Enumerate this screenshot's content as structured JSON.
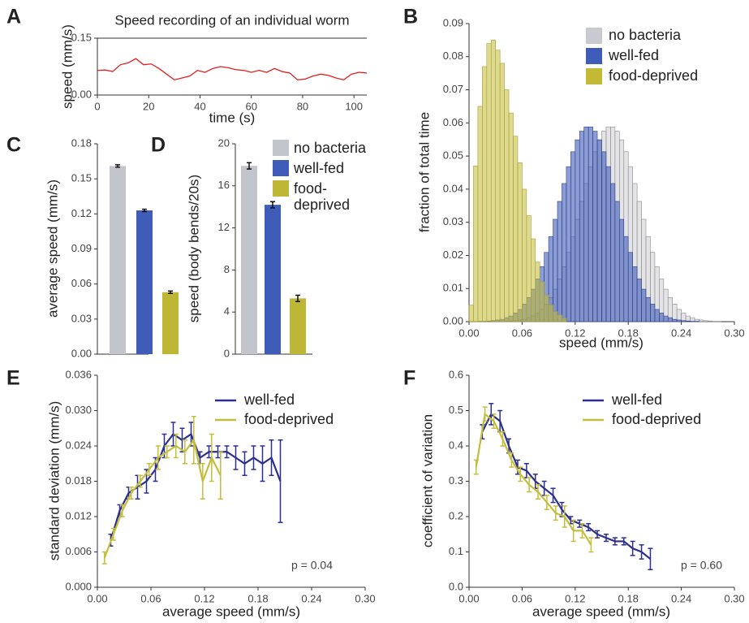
{
  "chart_data": [
    {
      "panel": "A",
      "type": "line",
      "title": "Speed recording of an individual worm",
      "xlabel": "time (s)",
      "ylabel": "speed (mm/s)",
      "color": "#e02020",
      "x": [
        0,
        3,
        6,
        9,
        12,
        15,
        18,
        21,
        24,
        27,
        30,
        33,
        36,
        39,
        42,
        45,
        48,
        51,
        54,
        57,
        60,
        63,
        66,
        69,
        72,
        75,
        78,
        81,
        84,
        87,
        90,
        93,
        96,
        99,
        102,
        105
      ],
      "values": [
        0.065,
        0.066,
        0.062,
        0.08,
        0.085,
        0.096,
        0.08,
        0.082,
        0.07,
        0.055,
        0.04,
        0.045,
        0.05,
        0.065,
        0.06,
        0.07,
        0.075,
        0.072,
        0.067,
        0.065,
        0.06,
        0.065,
        0.06,
        0.07,
        0.062,
        0.058,
        0.04,
        0.042,
        0.05,
        0.055,
        0.052,
        0.045,
        0.04,
        0.055,
        0.06,
        0.058
      ],
      "xlim": [
        0,
        105
      ],
      "xticks": [
        0,
        20,
        40,
        60,
        80,
        100
      ],
      "ylim": [
        0,
        0.15
      ],
      "yticks": [
        {
          "value": 0,
          "label": "0.00"
        },
        {
          "value": 0.15,
          "label": "0.15"
        }
      ]
    },
    {
      "panel": "B",
      "type": "histogram",
      "xlabel": "speed (mm/s)",
      "ylabel": "fraction of total time",
      "bins": [
        0,
        0.005,
        0.01,
        0.015,
        0.02,
        0.025,
        0.03,
        0.035,
        0.04,
        0.045,
        0.05,
        0.055,
        0.06,
        0.065,
        0.07,
        0.075,
        0.08,
        0.085,
        0.09,
        0.095,
        0.1,
        0.105,
        0.11,
        0.115,
        0.12,
        0.125,
        0.13,
        0.135,
        0.14,
        0.145,
        0.15,
        0.155,
        0.16,
        0.165,
        0.17,
        0.175,
        0.18,
        0.185,
        0.19,
        0.195,
        0.2,
        0.205,
        0.21,
        0.215,
        0.22,
        0.225,
        0.23,
        0.235,
        0.24,
        0.245,
        0.25,
        0.255,
        0.26,
        0.265,
        0.27,
        0.275,
        0.28,
        0.285,
        0.29,
        0.295,
        0.3
      ],
      "series": [
        {
          "name": "no bacteria",
          "color": "#c9cad0",
          "values": [
            0,
            0,
            0,
            0,
            0,
            0,
            0,
            0.0001,
            0.0001,
            0.0002,
            0.0003,
            0.0005,
            0.0007,
            0.0012,
            0.0017,
            0.0026,
            0.0037,
            0.0053,
            0.0073,
            0.0098,
            0.0129,
            0.0166,
            0.0209,
            0.0257,
            0.0309,
            0.0363,
            0.0417,
            0.0468,
            0.0513,
            0.0549,
            0.0575,
            0.0588,
            0.0588,
            0.0575,
            0.0549,
            0.0513,
            0.0468,
            0.0417,
            0.0363,
            0.0309,
            0.0257,
            0.0209,
            0.0166,
            0.0129,
            0.0098,
            0.0073,
            0.0053,
            0.0037,
            0.0026,
            0.0017,
            0.0012,
            0.0007,
            0.0005,
            0.0003,
            0.0002,
            0.0001,
            0.0001,
            0,
            0,
            0
          ]
        },
        {
          "name": "well-fed",
          "color": "#3f5cb8",
          "values": [
            0,
            0,
            0.0001,
            0.0001,
            0.0002,
            0.0003,
            0.0005,
            0.0007,
            0.0012,
            0.0017,
            0.0026,
            0.0037,
            0.0053,
            0.0073,
            0.0098,
            0.0129,
            0.0166,
            0.0209,
            0.0257,
            0.0309,
            0.0363,
            0.0417,
            0.0468,
            0.0513,
            0.0549,
            0.0575,
            0.0588,
            0.0588,
            0.0575,
            0.0549,
            0.0513,
            0.0468,
            0.0417,
            0.0363,
            0.0309,
            0.0257,
            0.0209,
            0.0166,
            0.0129,
            0.0098,
            0.0073,
            0.0053,
            0.0037,
            0.0026,
            0.0017,
            0.0012,
            0.0007,
            0.0005,
            0.0003,
            0.0002,
            0.0001,
            0.0001,
            0,
            0,
            0,
            0,
            0,
            0,
            0,
            0
          ]
        },
        {
          "name": "food-deprived",
          "color": "#c2ba35",
          "values": [
            0.005,
            0.047,
            0.065,
            0.077,
            0.084,
            0.085,
            0.082,
            0.078,
            0.07,
            0.063,
            0.056,
            0.048,
            0.04,
            0.032,
            0.025,
            0.018,
            0.012,
            0.008,
            0.005,
            0.003,
            0.002,
            0.001,
            0,
            0,
            0,
            0,
            0,
            0,
            0,
            0,
            0,
            0,
            0,
            0,
            0,
            0,
            0,
            0,
            0,
            0,
            0,
            0,
            0,
            0,
            0,
            0,
            0,
            0,
            0,
            0,
            0,
            0,
            0,
            0,
            0,
            0,
            0,
            0,
            0,
            0
          ]
        }
      ],
      "xlim": [
        0,
        0.3
      ],
      "xticks": [
        {
          "value": 0,
          "label": "0.00"
        },
        0.06,
        0.12,
        0.18,
        0.24,
        {
          "value": 0.3,
          "label": "0.30"
        }
      ],
      "ylim": [
        0,
        0.09
      ],
      "yticks": [
        {
          "value": 0,
          "label": "0.00"
        },
        0.01,
        0.02,
        0.03,
        0.04,
        0.05,
        0.06,
        0.07,
        0.08,
        0.09
      ]
    },
    {
      "panel": "C",
      "type": "bar",
      "ylabel": "average speed (mm/s)",
      "categories": [
        null,
        null,
        null
      ],
      "values": [
        0.161,
        0.123,
        0.053
      ],
      "errors": [
        0.001,
        0.001,
        0.001
      ],
      "colors": [
        "#c3c5cc",
        "#3f5cb8",
        "#bdb735"
      ],
      "ylim": [
        0,
        0.18
      ],
      "yticks": [
        {
          "value": 0,
          "label": "0.00"
        },
        0.03,
        0.06,
        0.09,
        0.12,
        0.15,
        0.18
      ]
    },
    {
      "panel": "D",
      "type": "bar",
      "ylabel": "speed (body bends/20s)",
      "categories": [
        null,
        null,
        null
      ],
      "values": [
        17.9,
        14.2,
        5.3
      ],
      "errors": [
        0.3,
        0.3,
        0.3
      ],
      "colors": [
        "#c3c5cc",
        "#3f5cb8",
        "#bdb735"
      ],
      "legend": [
        "no bacteria",
        "well-fed",
        "food-deprived"
      ],
      "ylim": [
        0,
        20
      ],
      "yticks": [
        0,
        4,
        8,
        12,
        16,
        20
      ]
    },
    {
      "panel": "E",
      "type": "line",
      "xlabel": "average speed (mm/s)",
      "ylabel": "standard deviation (mm/s)",
      "annotation": "p = 0.04",
      "series": [
        {
          "name": "well-fed",
          "color": "#2b2f8f",
          "x": [
            0.015,
            0.025,
            0.035,
            0.045,
            0.055,
            0.065,
            0.075,
            0.085,
            0.095,
            0.105,
            0.115,
            0.125,
            0.135,
            0.145,
            0.155,
            0.165,
            0.175,
            0.185,
            0.195,
            0.205
          ],
          "values": [
            0.008,
            0.013,
            0.016,
            0.017,
            0.018,
            0.02,
            0.024,
            0.026,
            0.025,
            0.026,
            0.022,
            0.023,
            0.023,
            0.023,
            0.022,
            0.021,
            0.022,
            0.021,
            0.022,
            0.018
          ],
          "errors": [
            0.001,
            0.001,
            0.001,
            0.002,
            0.002,
            0.002,
            0.002,
            0.002,
            0.002,
            0.002,
            0.001,
            0.001,
            0.001,
            0.001,
            0.002,
            0.002,
            0.002,
            0.003,
            0.003,
            0.007
          ]
        },
        {
          "name": "food-deprived",
          "color": "#c4be3c",
          "x": [
            0.008,
            0.018,
            0.028,
            0.038,
            0.048,
            0.058,
            0.068,
            0.078,
            0.088,
            0.098,
            0.108,
            0.118,
            0.128,
            0.138
          ],
          "values": [
            0.005,
            0.009,
            0.013,
            0.016,
            0.018,
            0.02,
            0.022,
            0.023,
            0.024,
            0.023,
            0.025,
            0.018,
            0.022,
            0.019
          ],
          "errors": [
            0.001,
            0.001,
            0.001,
            0.001,
            0.001,
            0.001,
            0.002,
            0.001,
            0.002,
            0.002,
            0.004,
            0.003,
            0.004,
            0.004
          ]
        }
      ],
      "xlim": [
        0,
        0.3
      ],
      "xticks": [
        {
          "value": 0,
          "label": "0.00"
        },
        0.06,
        0.12,
        0.18,
        0.24,
        {
          "value": 0.3,
          "label": "0.30"
        }
      ],
      "ylim": [
        0,
        0.036
      ],
      "yticks": [
        {
          "value": 0,
          "label": "0.000"
        },
        0.006,
        0.012,
        0.018,
        0.024,
        {
          "value": 0.03,
          "label": "0.030"
        },
        0.036
      ]
    },
    {
      "panel": "F",
      "type": "line",
      "xlabel": "average speed (mm/s)",
      "ylabel": "coefficient of variation",
      "annotation": "p = 0.60",
      "series": [
        {
          "name": "well-fed",
          "color": "#2b2f8f",
          "x": [
            0.015,
            0.025,
            0.035,
            0.045,
            0.055,
            0.065,
            0.075,
            0.085,
            0.095,
            0.105,
            0.115,
            0.125,
            0.135,
            0.145,
            0.155,
            0.165,
            0.175,
            0.185,
            0.195,
            0.205
          ],
          "values": [
            0.44,
            0.49,
            0.47,
            0.4,
            0.34,
            0.33,
            0.3,
            0.28,
            0.26,
            0.22,
            0.19,
            0.18,
            0.17,
            0.15,
            0.14,
            0.13,
            0.13,
            0.11,
            0.1,
            0.08
          ],
          "errors": [
            0.02,
            0.03,
            0.03,
            0.02,
            0.02,
            0.02,
            0.02,
            0.02,
            0.02,
            0.02,
            0.01,
            0.01,
            0.01,
            0.01,
            0.01,
            0.01,
            0.01,
            0.02,
            0.02,
            0.03
          ]
        },
        {
          "name": "food-deprived",
          "color": "#c4be3c",
          "x": [
            0.008,
            0.018,
            0.028,
            0.038,
            0.048,
            0.058,
            0.068,
            0.078,
            0.088,
            0.098,
            0.108,
            0.118,
            0.128,
            0.138
          ],
          "values": [
            0.34,
            0.49,
            0.47,
            0.42,
            0.36,
            0.32,
            0.29,
            0.27,
            0.24,
            0.21,
            0.2,
            0.16,
            0.16,
            0.12
          ],
          "errors": [
            0.02,
            0.02,
            0.02,
            0.02,
            0.02,
            0.02,
            0.02,
            0.02,
            0.02,
            0.02,
            0.03,
            0.03,
            0.02,
            0.02
          ]
        }
      ],
      "xlim": [
        0,
        0.3
      ],
      "xticks": [
        {
          "value": 0,
          "label": "0.00"
        },
        0.06,
        0.12,
        0.18,
        0.24,
        {
          "value": 0.3,
          "label": "0.30"
        }
      ],
      "ylim": [
        0,
        0.6
      ],
      "yticks": [
        {
          "value": 0,
          "label": "0.0"
        },
        0.1,
        0.2,
        0.3,
        0.4,
        0.5,
        0.6
      ]
    }
  ]
}
